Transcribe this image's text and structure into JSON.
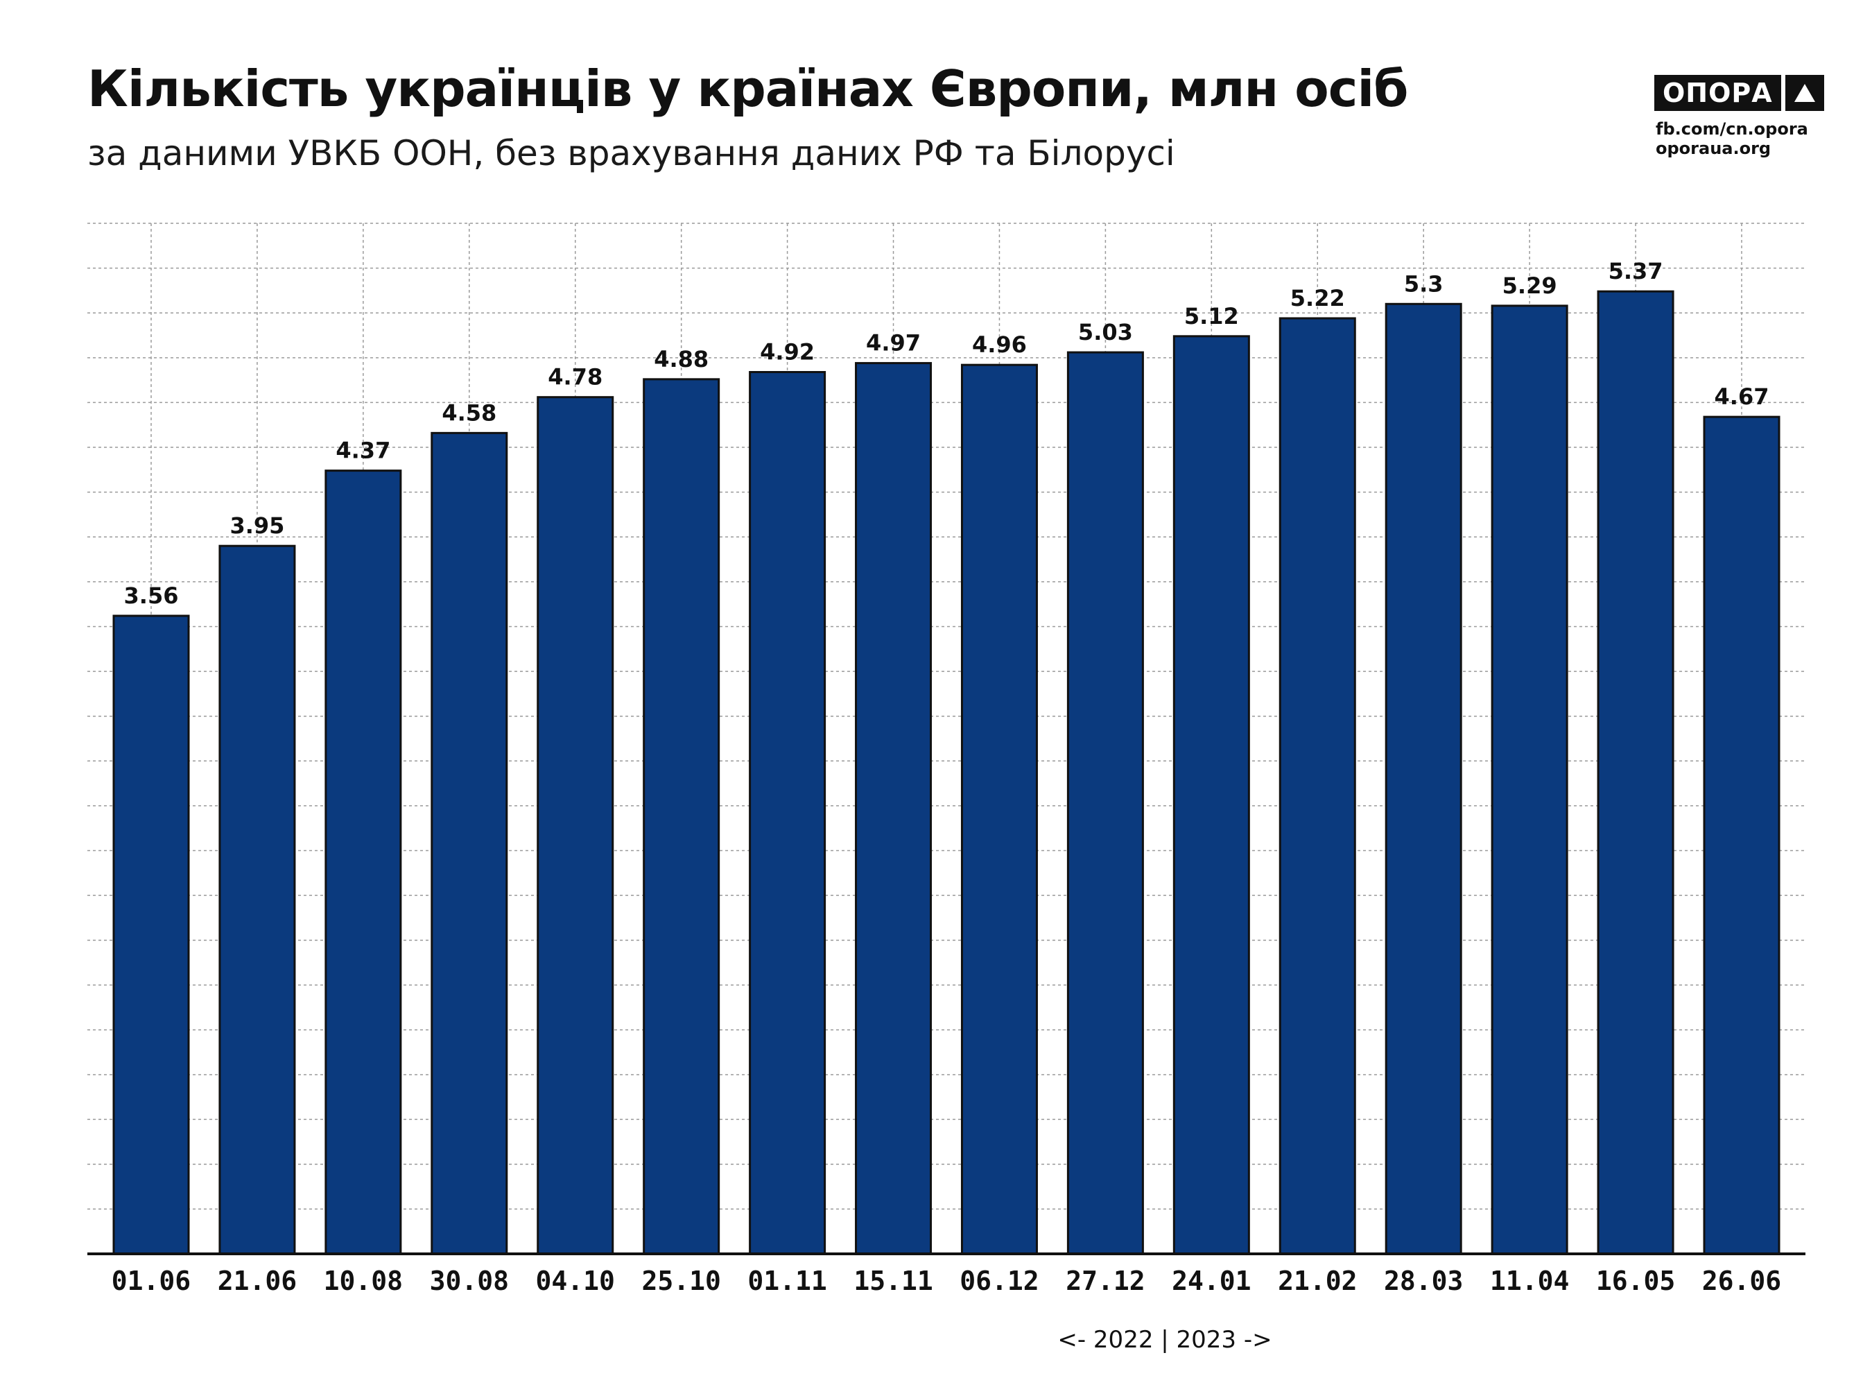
{
  "header": {
    "title": "Кількість українців у країнах Європи, млн осіб",
    "subtitle": "за даними УВКБ ООН, без врахування даних РФ та Білорусі"
  },
  "branding": {
    "logo_text": "ОПОРА",
    "logo_icon": "triangle-icon",
    "line1": "fb.com/cn.opora",
    "line2": "oporaua.org"
  },
  "year_note": "<- 2022 | 2023 ->",
  "colors": {
    "bar": "#0b3a7e",
    "bar_outline": "#111111",
    "grid": "#9a9a9a",
    "text": "#111111"
  },
  "chart_data": {
    "type": "bar",
    "categories": [
      "01.06",
      "21.06",
      "10.08",
      "30.08",
      "04.10",
      "25.10",
      "01.11",
      "15.11",
      "06.12",
      "27.12",
      "24.01",
      "21.02",
      "28.03",
      "11.04",
      "16.05",
      "26.06"
    ],
    "values": [
      3.56,
      3.95,
      4.37,
      4.58,
      4.78,
      4.88,
      4.92,
      4.97,
      4.96,
      5.03,
      5.12,
      5.22,
      5.3,
      5.29,
      5.37,
      4.67
    ],
    "value_labels": [
      "3.56",
      "3.95",
      "4.37",
      "4.58",
      "4.78",
      "4.88",
      "4.92",
      "4.97",
      "4.96",
      "5.03",
      "5.12",
      "5.22",
      "5.3",
      "5.29",
      "5.37",
      "4.67"
    ],
    "title": "Кількість українців у країнах Європи, млн осіб",
    "xlabel": "",
    "ylabel": "",
    "ylim": [
      0,
      5.75
    ],
    "grid": true,
    "legend": "none"
  }
}
